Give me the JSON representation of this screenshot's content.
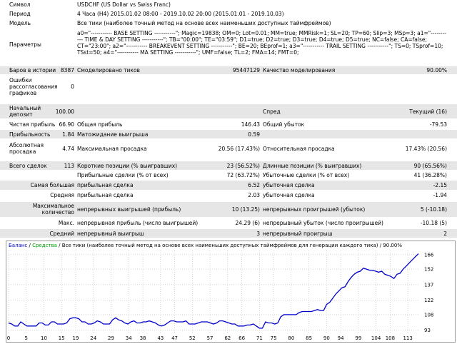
{
  "report": {
    "symbol_label": "Символ",
    "symbol_value": "USDCHF (US Dollar vs Swiss Franc)",
    "period_label": "Период",
    "period_value": "4 Часа (H4) 2015.01.02 08:00 - 2019.10.02 20:00 (2015.01.01 - 2019.10.03)",
    "model_label": "Модель",
    "model_value": "Все тики (наиболее точный метод на основе всех наименьших доступных таймфреймов)",
    "params_label": "Параметры",
    "params_value": "a0=\"----------- BASE SETTING -----------\"; Magic=19838; OM=0; Lot=0.01; MM=true; MMRisk=1; SL=20; TP=60; Slip=3; MSp=3; a1=\"----------- TIME & DAY SETTING -----------\"; TB=\"00:00\"; TE=\"03:59\"; D1=true; D2=true; D3=true; D4=true; D5=true; NC=false; CA=false; CT=\"23:00\"; a2=\"----------- BREAKEVENT SETTING -----------\"; BE=20; BEprof=1; a3=\"----------- TRAIL SETTING -----------\"; TS=0; TSprof=10; TSst=50; a4=\"----------- MA SETTING -----------\"; UMF=false; TL=2; FMA=14; FMT=0;",
    "bars_label": "Баров в истории",
    "bars_value": "8387",
    "ticks_label": "Смоделировано тиков",
    "ticks_value": "95447129",
    "quality_label": "Качество моделирования",
    "quality_value": "90.00%",
    "errors_label": "Ошибки рассогласования графиков",
    "errors_value": "0",
    "deposit_label": "Начальный депозит",
    "deposit_value": "100.00",
    "spread_label": "Спред",
    "spread_value": "Текущий (16)",
    "net_profit_label": "Чистая прибыль",
    "net_profit_value": "66.90",
    "gross_profit_label": "Общая прибыль",
    "gross_profit_value": "146.43",
    "gross_loss_label": "Общий убыток",
    "gross_loss_value": "-79.53",
    "pf_label": "Прибыльность",
    "pf_value": "1.84",
    "expected_label": "Матожидание выигрыша",
    "expected_value": "0.59",
    "abs_dd_label": "Абсолютная просадка",
    "abs_dd_value": "4.74",
    "max_dd_label": "Максимальная просадка",
    "max_dd_value": "20.56 (17.43%)",
    "rel_dd_label": "Относительная просадка",
    "rel_dd_value": "17.43% (20.56)",
    "total_trades_label": "Всего сделок",
    "total_trades_value": "113",
    "short_label": "Короткие позиции (% выигравших)",
    "short_value": "23 (56.52%)",
    "long_label": "Длинные позиции (% выигравших)",
    "long_value": "90 (65.56%)",
    "profit_trades_label": "Прибыльные сделки (% от всех)",
    "profit_trades_value": "72 (63.72%)",
    "loss_trades_label": "Убыточные сделки (% от всех)",
    "loss_trades_value": "41 (36.28%)",
    "largest_a": "Самая большая",
    "largest_profit_label": "прибыльная сделка",
    "largest_profit_value": "6.52",
    "largest_loss_label": "убыточная сделка",
    "largest_loss_value": "-2.15",
    "average_a": "Средняя",
    "avg_profit_label": "прибыльная сделка",
    "avg_profit_value": "2.03",
    "avg_loss_label": "убыточная сделка",
    "avg_loss_value": "-1.94",
    "max_count_a": "Максимальное количество",
    "cons_wins_label": "непрерывных выигрышей (прибыль)",
    "cons_wins_value": "10 (13.25)",
    "cons_losses_label": "непрерывных проигрышей (убыток)",
    "cons_losses_value": "5 (-10.18)",
    "max_a": "Макс.",
    "cons_profit_label": "непрерывная прибыль (число выигрышей)",
    "cons_profit_value": "24.29 (6)",
    "cons_loss_label": "непрерывный убыток (число проигрышей)",
    "cons_loss_value": "-10.18 (5)",
    "avg_a": "Средний",
    "avg_cons_wins_label": "непрерывный выигрыш",
    "avg_cons_wins_value": "3",
    "avg_cons_losses_label": "непрерывный проигрыш",
    "avg_cons_losses_value": "2"
  },
  "chart_header": {
    "balance": "Баланс",
    "sep1": " / ",
    "equity": "Средства",
    "rest": " / Все тики (наиболее точный метод на основе всех наименьших доступных таймфреймов для генерации каждого тика) / 90.00%"
  },
  "colors": {
    "balance_line": "#0000cc",
    "equity_label": "#00a000",
    "grid": "#b8b8b8",
    "row_shade": "#e6e6e6"
  },
  "chart_data": {
    "type": "line",
    "title": "",
    "xlabel": "",
    "ylabel": "",
    "x_ticks": [
      0,
      5,
      10,
      15,
      19,
      24,
      29,
      34,
      38,
      43,
      47,
      52,
      57,
      62,
      66,
      71,
      75,
      80,
      85,
      90,
      94,
      99,
      104,
      108,
      113
    ],
    "y_ticks": [
      93,
      108,
      122,
      137,
      152,
      166
    ],
    "xlim": [
      0,
      116
    ],
    "ylim": [
      90,
      170
    ],
    "series": [
      {
        "values": [
          100,
          99,
          97,
          97,
          101,
          99,
          97,
          97,
          97,
          97,
          100,
          100,
          98,
          98,
          101,
          101,
          99,
          99,
          99,
          100,
          104,
          105,
          105,
          104,
          101,
          101,
          99,
          99,
          100,
          102,
          101,
          99,
          99,
          99,
          103,
          105,
          103,
          102,
          100,
          99,
          101,
          102,
          100,
          100,
          101,
          101,
          102,
          101,
          100,
          98,
          97,
          98,
          100,
          102,
          102,
          101,
          101,
          101,
          102,
          99,
          99,
          99,
          100,
          101,
          101,
          101,
          100,
          99,
          100,
          102,
          102,
          101,
          100,
          99,
          99,
          97,
          97,
          97,
          98,
          98,
          99,
          97,
          95,
          95,
          101,
          100,
          100,
          99,
          100,
          106,
          108,
          108,
          108,
          108,
          108,
          110,
          111,
          111,
          111,
          111,
          112,
          113,
          112,
          112,
          118,
          120,
          124,
          128,
          131,
          134,
          135,
          140,
          144,
          147,
          149,
          150,
          153,
          152,
          151,
          151,
          150,
          149,
          150,
          147,
          146,
          145,
          143,
          147,
          148,
          152,
          155,
          158,
          161,
          164,
          166.9
        ]
      }
    ]
  }
}
